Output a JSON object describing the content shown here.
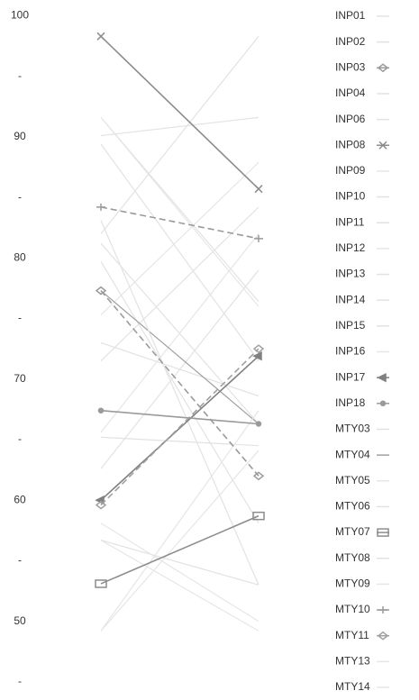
{
  "chart_data": {
    "type": "slope",
    "categories": [
      null,
      null
    ],
    "ylim": [
      43.5,
      101.3
    ],
    "yticks": [
      100,
      {
        "value": 95,
        "label": "-"
      },
      90,
      {
        "value": 85,
        "label": "-"
      },
      80,
      {
        "value": 75,
        "label": "-"
      },
      70,
      {
        "value": 65,
        "label": "-"
      },
      60,
      {
        "value": 55,
        "label": "-"
      },
      50,
      {
        "value": 45,
        "label": "-"
      }
    ],
    "grid": false,
    "series": [
      {
        "name": "INP01",
        "color": "#e2e2e2",
        "values": [
          82,
          98.3
        ]
      },
      {
        "name": "INP02",
        "color": "#e2e2e2",
        "values": [
          91.6,
          76.4
        ]
      },
      {
        "name": "INP03",
        "color": "#9a9a9a",
        "marker": "diamond",
        "dash": true,
        "values": [
          77.3,
          62
        ]
      },
      {
        "name": "INP04",
        "color": "#e2e2e2",
        "values": [
          90.1,
          91.6
        ]
      },
      {
        "name": "INP06",
        "color": "#e2e2e2",
        "values": [
          81.2,
          66.3
        ]
      },
      {
        "name": "INP08",
        "color": "#8c8c8c",
        "marker": "x",
        "values": [
          98.3,
          85.7
        ]
      },
      {
        "name": "INP09",
        "color": "#e6e6e6",
        "values": [
          75.3,
          87.9
        ]
      },
      {
        "name": "INP10",
        "color": "#e2e2e2",
        "values": [
          71.5,
          84.2
        ]
      },
      {
        "name": "INP11",
        "color": "#e2e2e2",
        "values": [
          79.7,
          58.1
        ]
      },
      {
        "name": "INP12",
        "color": "#e6e6e6",
        "values": [
          65.6,
          82
        ]
      },
      {
        "name": "INP13",
        "color": "#e2e2e2",
        "values": [
          62.6,
          79
        ]
      },
      {
        "name": "INP14",
        "color": "#e2e2e2",
        "values": [
          89.4,
          71.5
        ]
      },
      {
        "name": "INP15",
        "color": "#e2e2e2",
        "values": [
          73,
          68.6
        ]
      },
      {
        "name": "INP16",
        "color": "#e6e6e6",
        "values": [
          56.7,
          49.2
        ]
      },
      {
        "name": "INP17",
        "color": "#808080",
        "marker": "tri",
        "values": [
          60,
          71.9
        ]
      },
      {
        "name": "INP18",
        "color": "#9a9a9a",
        "marker": "circle",
        "values": [
          67.4,
          66.3
        ]
      },
      {
        "name": "MTY03",
        "color": "#e2e2e2",
        "values": [
          65.2,
          64.5
        ]
      },
      {
        "name": "MTY04",
        "color": "#a0a0a0",
        "values": [
          77.3,
          66.3
        ]
      },
      {
        "name": "MTY05",
        "color": "#e6e6e6",
        "values": [
          49.2,
          64.1
        ]
      },
      {
        "name": "MTY06",
        "color": "#e2e2e2",
        "values": [
          83.1,
          53
        ]
      },
      {
        "name": "MTY07",
        "color": "#8c8c8c",
        "marker": "square",
        "values": [
          53.1,
          58.7
        ]
      },
      {
        "name": "MTY08",
        "color": "#e2e2e2",
        "values": [
          56.7,
          53
        ]
      },
      {
        "name": "MTY09",
        "color": "#e6e6e6",
        "values": [
          91.6,
          76
        ]
      },
      {
        "name": "MTY10",
        "color": "#9a9a9a",
        "marker": "plus",
        "dash": true,
        "values": [
          84.2,
          81.6
        ]
      },
      {
        "name": "MTY11",
        "color": "#a0a0a0",
        "marker": "diamond",
        "dash": true,
        "values": [
          59.6,
          72.5
        ]
      },
      {
        "name": "MTY13",
        "color": "#e6e6e6",
        "values": [
          49.2,
          67.4
        ]
      },
      {
        "name": "MTY14",
        "color": "#e6e6e6",
        "values": [
          58.1,
          50
        ]
      }
    ]
  }
}
